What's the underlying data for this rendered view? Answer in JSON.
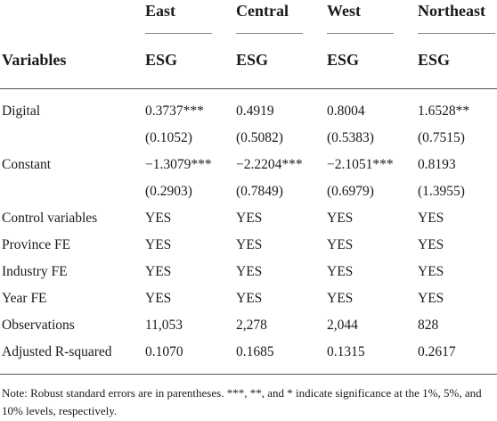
{
  "header": {
    "col_heads": [
      "East",
      "Central",
      "West",
      "Northeast"
    ],
    "row_head": "Variables",
    "dep_vars": [
      "ESG",
      "ESG",
      "ESG",
      "ESG"
    ]
  },
  "rows": [
    {
      "label": "Digital",
      "values": [
        "0.3737***",
        "0.4919",
        "0.8004",
        "1.6528**"
      ]
    },
    {
      "label": "",
      "values": [
        "(0.1052)",
        "(0.5082)",
        "(0.5383)",
        "(0.7515)"
      ]
    },
    {
      "label": "Constant",
      "values": [
        "−1.3079***",
        "−2.2204***",
        "−2.1051***",
        "0.8193"
      ]
    },
    {
      "label": "",
      "values": [
        "(0.2903)",
        "(0.7849)",
        "(0.6979)",
        "(1.3955)"
      ]
    },
    {
      "label": "Control variables",
      "values": [
        "YES",
        "YES",
        "YES",
        "YES"
      ]
    },
    {
      "label": "Province FE",
      "values": [
        "YES",
        "YES",
        "YES",
        "YES"
      ]
    },
    {
      "label": "Industry FE",
      "values": [
        "YES",
        "YES",
        "YES",
        "YES"
      ]
    },
    {
      "label": "Year FE",
      "values": [
        "YES",
        "YES",
        "YES",
        "YES"
      ]
    },
    {
      "label": "Observations",
      "values": [
        "11,053",
        "2,278",
        "2,044",
        "828"
      ]
    },
    {
      "label": "Adjusted R-squared",
      "values": [
        "0.1070",
        "0.1685",
        "0.1315",
        "0.2617"
      ]
    }
  ],
  "note": "Note: Robust standard errors are in parentheses. ***, **, and * indicate significance at the 1%, 5%, and 10% levels, respectively."
}
